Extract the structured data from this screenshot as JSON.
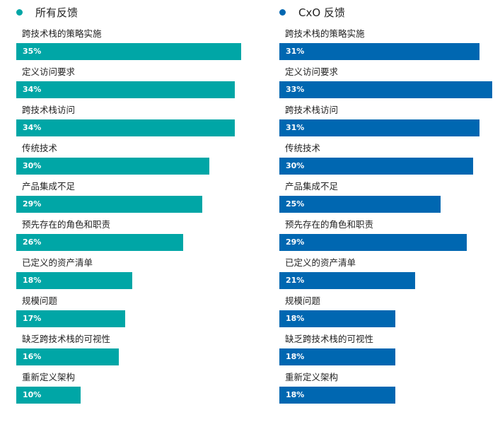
{
  "chart_data": [
    {
      "type": "bar",
      "orientation": "horizontal",
      "title": "所有反馈",
      "color": "#00a6a6",
      "xlim": [
        0,
        35
      ],
      "grid": false,
      "categories": [
        "跨技术栈的策略实施",
        "定义访问要求",
        "跨技术栈访问",
        "传统技术",
        "产品集成不足",
        "预先存在的角色和职责",
        "已定义的资产清单",
        "规模问题",
        "缺乏跨技术栈的可视性",
        "重新定义架构"
      ],
      "values": [
        35,
        34,
        34,
        30,
        29,
        26,
        18,
        17,
        16,
        10
      ],
      "value_labels": [
        "35%",
        "34%",
        "34%",
        "30%",
        "29%",
        "26%",
        "18%",
        "17%",
        "16%",
        "10%"
      ]
    },
    {
      "type": "bar",
      "orientation": "horizontal",
      "title": "CxO 反馈",
      "color": "#0067b1",
      "xlim": [
        0,
        33
      ],
      "grid": false,
      "categories": [
        "跨技术栈的策略实施",
        "定义访问要求",
        "跨技术栈访问",
        "传统技术",
        "产品集成不足",
        "预先存在的角色和职责",
        "已定义的资产清单",
        "规模问题",
        "缺乏跨技术栈的可视性",
        "重新定义架构"
      ],
      "values": [
        31,
        33,
        31,
        30,
        25,
        29,
        21,
        18,
        18,
        18
      ],
      "value_labels": [
        "31%",
        "33%",
        "31%",
        "30%",
        "25%",
        "29%",
        "21%",
        "18%",
        "18%",
        "18%"
      ]
    }
  ]
}
